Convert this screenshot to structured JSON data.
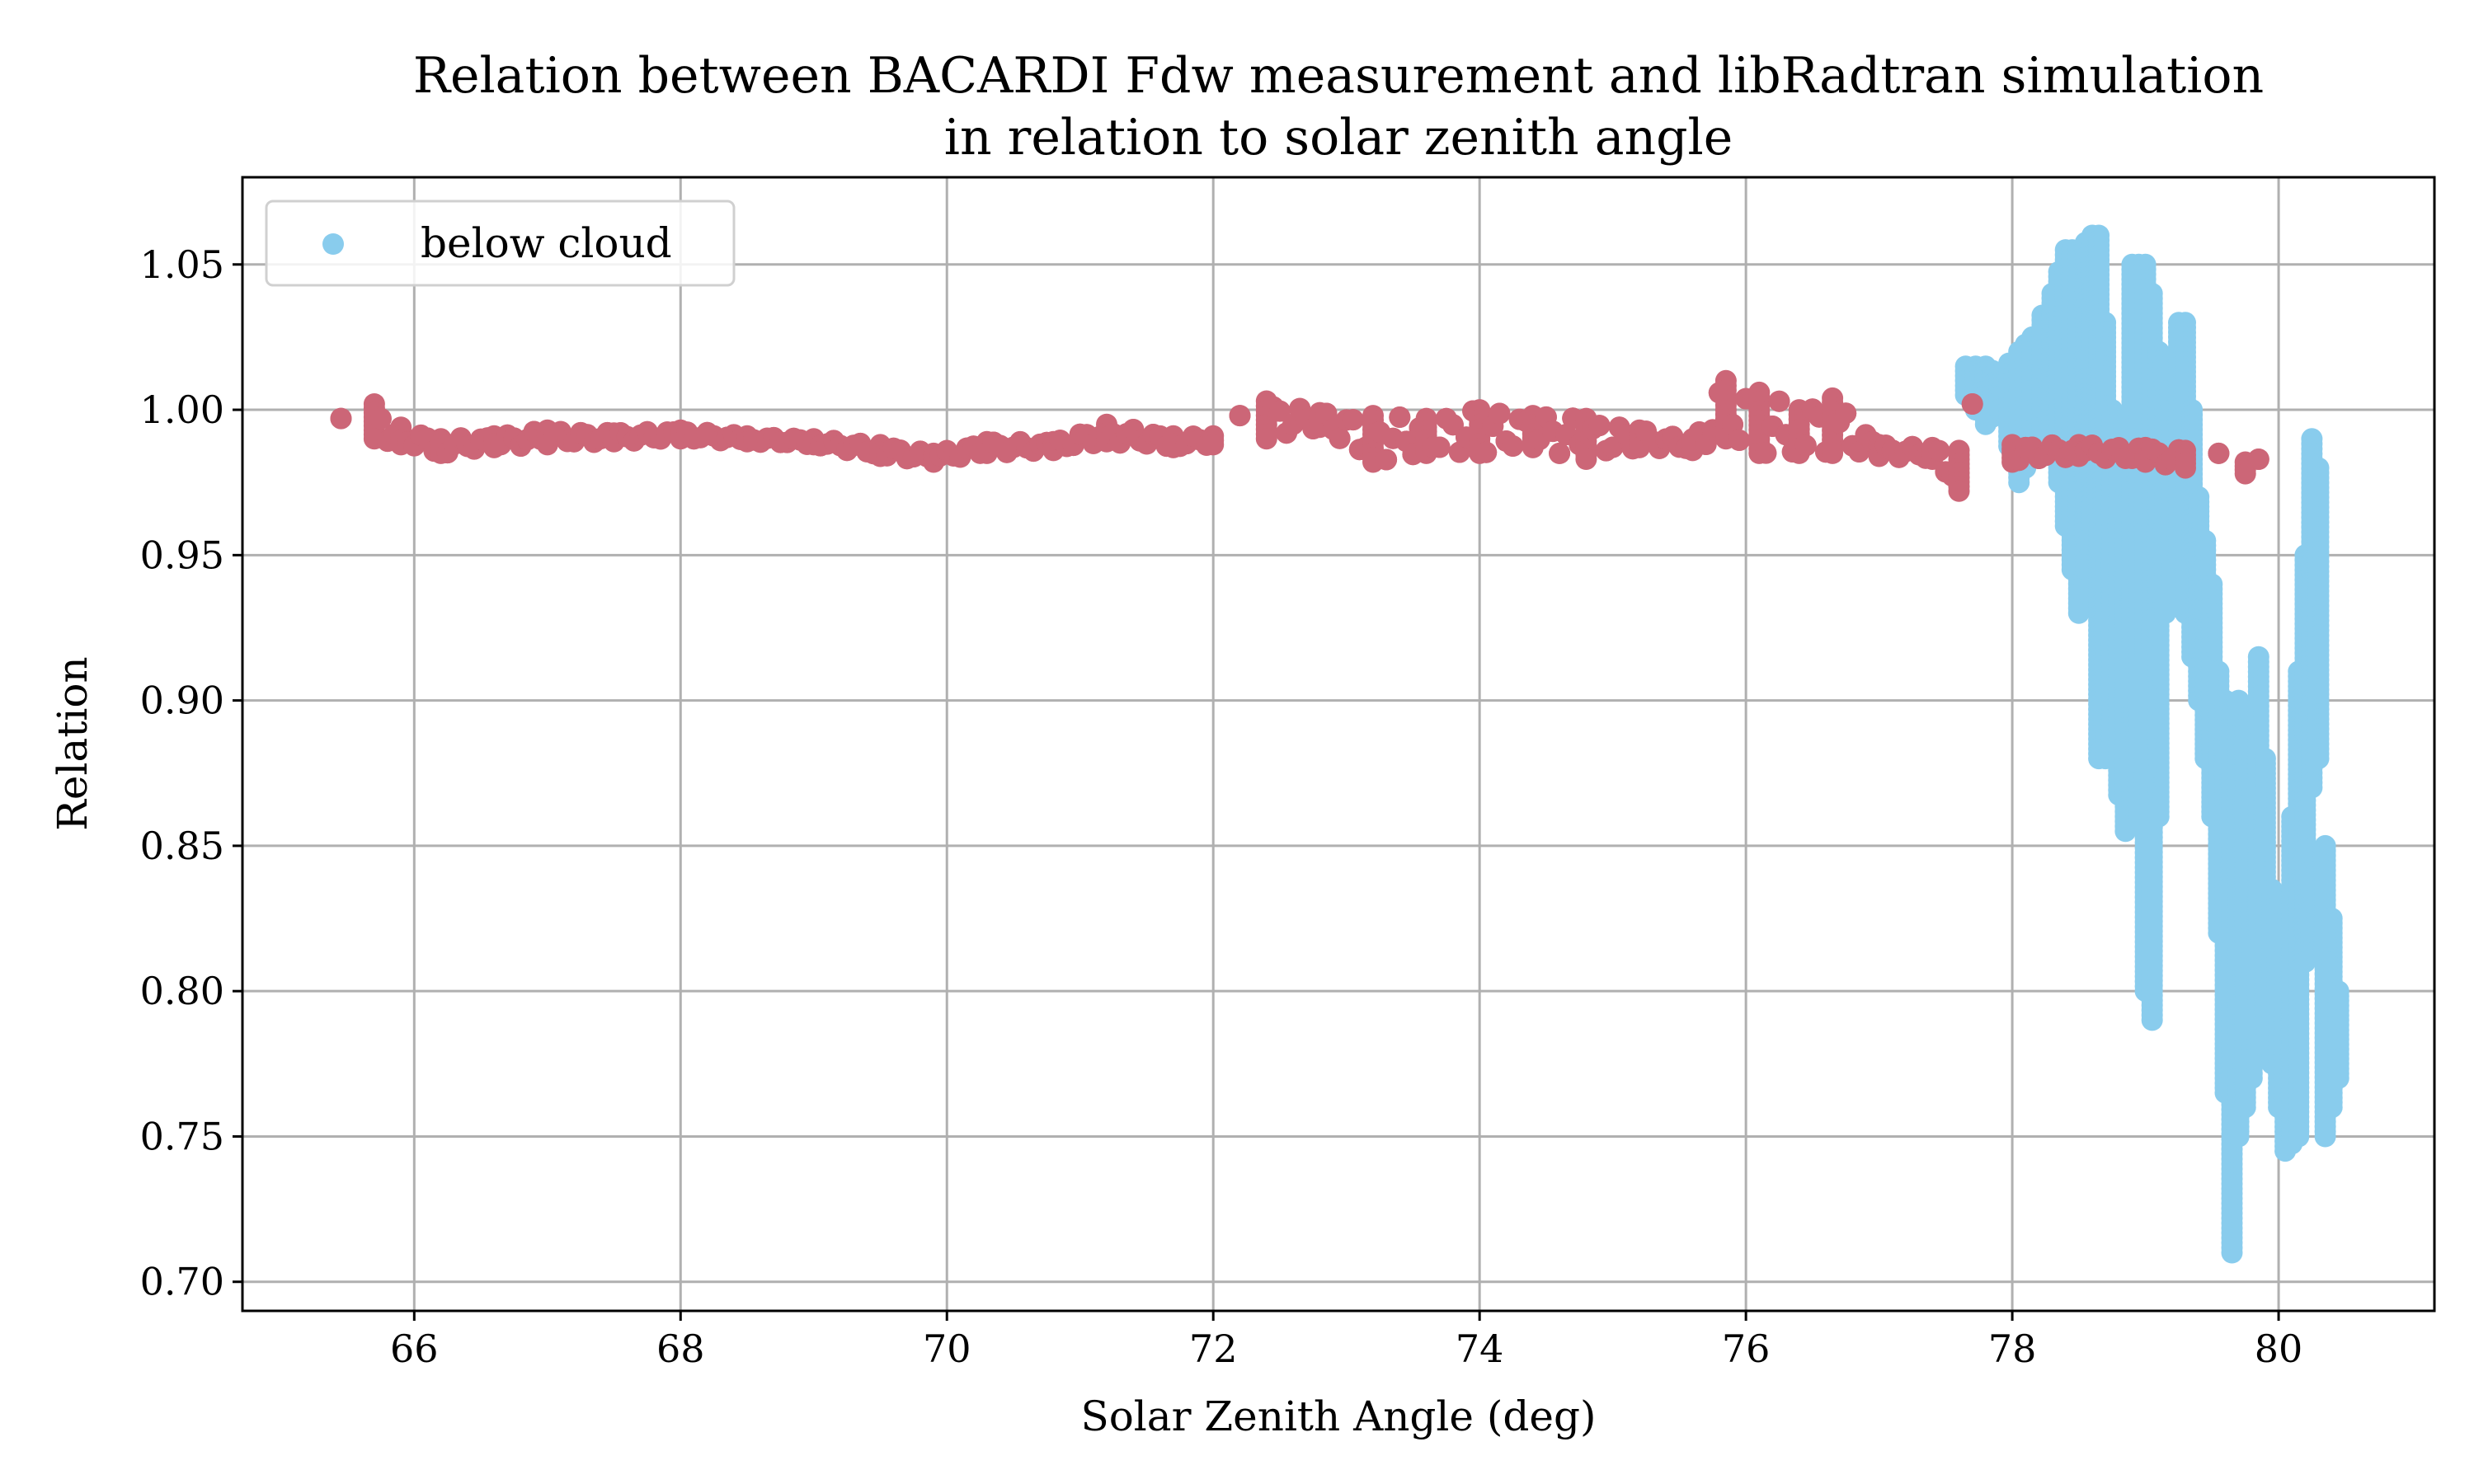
{
  "chart_data": {
    "type": "scatter",
    "title": [
      "Relation between BACARDI Fdw measurement and libRadtran simulation",
      "in relation to solar zenith angle"
    ],
    "xlabel": "Solar Zenith Angle (deg)",
    "ylabel": "Relation",
    "xlim": [
      64.71,
      81.17
    ],
    "ylim": [
      0.69,
      1.08
    ],
    "xticks": [
      66,
      68,
      70,
      72,
      74,
      76,
      78,
      80
    ],
    "xtick_labels": [
      "66",
      "68",
      "70",
      "72",
      "74",
      "76",
      "78",
      "80"
    ],
    "yticks": [
      0.7,
      0.75,
      0.8,
      0.85,
      0.9,
      0.95,
      1.0,
      1.05
    ],
    "ytick_labels": [
      "0.70",
      "0.75",
      "0.80",
      "0.85",
      "0.90",
      "0.95",
      "1.00",
      "1.05"
    ],
    "grid": true,
    "legend": {
      "position": "top-left",
      "entries": [
        "below cloud"
      ]
    },
    "point_format": "[x, y_min, y_max] vertical runs of dense points",
    "series": [
      {
        "name": "below cloud",
        "color": "#89CCED",
        "points": [
          [
            77.65,
            1.005,
            1.015
          ],
          [
            77.8,
            0.995,
            1.015
          ],
          [
            77.9,
            1.0,
            1.012
          ],
          [
            78.05,
            0.975,
            1.02
          ],
          [
            78.15,
            0.985,
            1.025
          ],
          [
            78.3,
            0.99,
            1.04
          ],
          [
            78.4,
            0.96,
            1.055
          ],
          [
            78.5,
            0.93,
            1.055
          ],
          [
            78.6,
            0.96,
            1.06
          ],
          [
            78.65,
            0.88,
            1.06
          ],
          [
            78.75,
            0.88,
            1.0
          ],
          [
            78.85,
            0.855,
            0.96
          ],
          [
            78.9,
            0.92,
            1.05
          ],
          [
            79.0,
            0.8,
            1.05
          ],
          [
            79.05,
            0.79,
            1.04
          ],
          [
            79.15,
            0.93,
            1.0
          ],
          [
            79.25,
            0.95,
            1.03
          ],
          [
            79.3,
            0.93,
            1.03
          ],
          [
            79.4,
            0.9,
            0.97
          ],
          [
            79.5,
            0.86,
            0.94
          ],
          [
            79.55,
            0.82,
            0.91
          ],
          [
            79.65,
            0.71,
            0.89
          ],
          [
            79.7,
            0.75,
            0.9
          ],
          [
            79.8,
            0.77,
            0.88
          ],
          [
            79.85,
            0.82,
            0.915
          ],
          [
            79.9,
            0.79,
            0.88
          ],
          [
            80.0,
            0.76,
            0.79
          ],
          [
            80.05,
            0.745,
            0.81
          ],
          [
            80.15,
            0.75,
            0.91
          ],
          [
            80.25,
            0.87,
            0.99
          ],
          [
            80.3,
            0.88,
            0.98
          ],
          [
            80.35,
            0.75,
            0.85
          ],
          [
            80.45,
            0.77,
            0.8
          ]
        ]
      },
      {
        "color": "#CC6677",
        "points": [
          [
            65.45,
            0.997,
            0.997
          ],
          [
            65.7,
            0.99,
            1.002
          ],
          [
            65.9,
            0.988,
            0.994
          ],
          [
            66.2,
            0.985,
            0.99
          ],
          [
            66.6,
            0.987,
            0.991
          ],
          [
            67.0,
            0.988,
            0.993
          ],
          [
            67.5,
            0.989,
            0.992
          ],
          [
            68.0,
            0.99,
            0.993
          ],
          [
            68.5,
            0.989,
            0.991
          ],
          [
            69.0,
            0.988,
            0.99
          ],
          [
            69.5,
            0.984,
            0.988
          ],
          [
            69.9,
            0.982,
            0.985
          ],
          [
            70.3,
            0.985,
            0.989
          ],
          [
            70.8,
            0.986,
            0.989
          ],
          [
            71.2,
            0.989,
            0.995
          ],
          [
            71.7,
            0.987,
            0.991
          ],
          [
            72.0,
            0.988,
            0.991
          ],
          [
            72.2,
            0.998,
            0.998
          ],
          [
            72.4,
            0.99,
            1.003
          ],
          [
            72.8,
            0.994,
            0.999
          ],
          [
            73.2,
            0.982,
            0.998
          ],
          [
            73.6,
            0.985,
            0.997
          ],
          [
            74.0,
            0.985,
            1.0
          ],
          [
            74.4,
            0.987,
            0.998
          ],
          [
            74.8,
            0.983,
            0.997
          ],
          [
            75.2,
            0.987,
            0.993
          ],
          [
            75.6,
            0.986,
            0.99
          ],
          [
            75.85,
            0.99,
            1.01
          ],
          [
            76.1,
            0.985,
            1.006
          ],
          [
            76.4,
            0.985,
            1.0
          ],
          [
            76.65,
            0.985,
            1.004
          ],
          [
            77.0,
            0.984,
            0.988
          ],
          [
            77.4,
            0.983,
            0.987
          ],
          [
            77.6,
            0.972,
            0.986
          ],
          [
            77.7,
            1.002,
            1.002
          ],
          [
            78.0,
            0.982,
            0.988
          ],
          [
            78.5,
            0.984,
            0.988
          ],
          [
            79.0,
            0.982,
            0.987
          ],
          [
            79.3,
            0.98,
            0.986
          ],
          [
            79.55,
            0.985,
            0.985
          ],
          [
            79.75,
            0.978,
            0.982
          ],
          [
            79.85,
            0.983,
            0.983
          ]
        ]
      }
    ]
  }
}
